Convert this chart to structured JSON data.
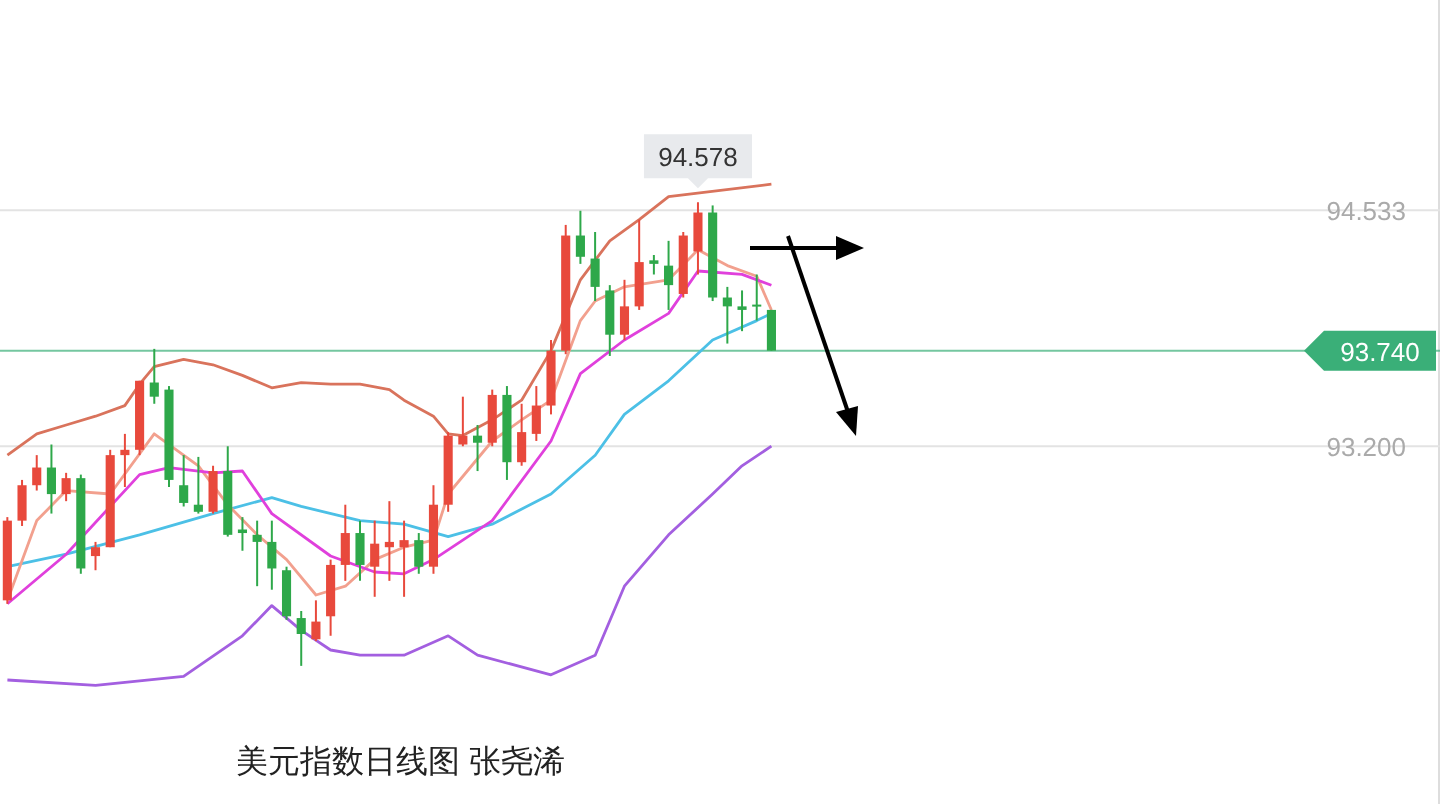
{
  "chart_data": {
    "type": "candlestick",
    "title": "美元指数日线图 张尧浠",
    "categories": [
      null,
      null,
      null,
      null,
      null,
      null,
      null,
      null,
      null,
      null,
      null,
      null,
      null,
      null,
      null,
      null,
      null,
      null,
      null,
      null,
      null,
      null,
      null,
      null,
      null,
      null,
      null,
      null,
      null,
      null,
      null,
      null,
      null,
      null,
      null,
      null,
      null,
      null,
      null,
      null,
      null,
      null,
      null,
      null,
      null,
      null,
      null,
      null,
      null,
      null,
      null,
      null,
      null,
      null,
      null,
      null,
      null,
      null,
      null,
      null,
      null,
      null,
      null,
      null,
      null,
      null,
      null,
      null,
      null,
      null,
      null,
      null,
      null,
      null,
      null,
      null,
      null,
      null,
      null,
      null,
      null,
      null,
      null,
      null,
      null,
      null,
      null,
      null,
      null,
      null,
      null,
      null,
      null,
      null,
      null,
      null,
      null,
      null
    ],
    "ohlc": [
      [
        92.33,
        92.8,
        92.31,
        92.78
      ],
      [
        92.78,
        93.01,
        92.75,
        92.98
      ],
      [
        92.98,
        93.15,
        92.95,
        93.08
      ],
      [
        93.08,
        93.21,
        92.82,
        92.93
      ],
      [
        92.93,
        93.05,
        92.89,
        93.02
      ],
      [
        93.02,
        93.04,
        92.48,
        92.51
      ],
      [
        92.58,
        92.66,
        92.5,
        92.63
      ],
      [
        92.63,
        93.18,
        92.63,
        93.15
      ],
      [
        93.15,
        93.27,
        92.97,
        93.18
      ],
      [
        93.18,
        93.57,
        93.15,
        93.57
      ],
      [
        93.56,
        93.75,
        93.44,
        93.48
      ],
      [
        93.52,
        93.54,
        92.97,
        93.01
      ],
      [
        92.98,
        93.15,
        92.86,
        92.88
      ],
      [
        92.87,
        93.14,
        92.82,
        92.83
      ],
      [
        92.83,
        93.09,
        92.82,
        93.06
      ],
      [
        93.06,
        93.2,
        92.69,
        92.7
      ],
      [
        92.73,
        92.8,
        92.61,
        92.71
      ],
      [
        92.7,
        92.78,
        92.41,
        92.66
      ],
      [
        92.66,
        92.78,
        92.39,
        92.51
      ],
      [
        92.5,
        92.52,
        92.22,
        92.24
      ],
      [
        92.23,
        92.27,
        91.96,
        92.14
      ],
      [
        92.11,
        92.33,
        92.1,
        92.21
      ],
      [
        92.24,
        92.56,
        92.13,
        92.53
      ],
      [
        92.53,
        92.87,
        92.44,
        92.71
      ],
      [
        92.71,
        92.78,
        92.44,
        92.53
      ],
      [
        92.52,
        92.78,
        92.35,
        92.65
      ],
      [
        92.63,
        92.89,
        92.44,
        92.66
      ],
      [
        92.63,
        92.78,
        92.35,
        92.67
      ],
      [
        92.67,
        92.71,
        92.48,
        92.52
      ],
      [
        92.52,
        92.98,
        92.48,
        92.87
      ],
      [
        92.87,
        93.28,
        92.83,
        93.26
      ],
      [
        93.21,
        93.48,
        93.2,
        93.26
      ],
      [
        93.26,
        93.32,
        93.06,
        93.22
      ],
      [
        93.22,
        93.52,
        93.2,
        93.49
      ],
      [
        93.49,
        93.54,
        93.01,
        93.11
      ],
      [
        93.11,
        93.44,
        93.09,
        93.28
      ],
      [
        93.27,
        93.54,
        93.23,
        93.43
      ],
      [
        93.43,
        93.8,
        93.38,
        93.74
      ],
      [
        93.74,
        94.45,
        93.72,
        94.39
      ],
      [
        94.39,
        94.53,
        94.23,
        94.27
      ],
      [
        94.26,
        94.41,
        94.02,
        94.1
      ],
      [
        94.08,
        94.11,
        93.71,
        93.83
      ],
      [
        93.83,
        94.14,
        93.8,
        93.99
      ],
      [
        93.99,
        94.48,
        93.97,
        94.24
      ],
      [
        94.25,
        94.28,
        94.17,
        94.23
      ],
      [
        94.22,
        94.36,
        93.97,
        94.11
      ],
      [
        94.06,
        94.41,
        94.04,
        94.39
      ],
      [
        94.3,
        94.578,
        94.17,
        94.52
      ],
      [
        94.52,
        94.56,
        94.02,
        94.04
      ],
      [
        94.04,
        94.1,
        93.78,
        93.99
      ],
      [
        93.99,
        94.08,
        93.85,
        93.97
      ],
      [
        94.0,
        94.17,
        93.91,
        93.99
      ],
      [
        93.97,
        93.97,
        93.74,
        93.74
      ],
      null,
      null,
      null,
      null,
      null,
      null,
      null,
      null,
      null,
      null,
      null,
      null,
      null,
      null,
      null,
      null,
      null,
      null,
      null,
      null,
      null,
      null,
      null,
      null,
      null,
      null,
      null,
      null,
      null,
      null,
      null,
      null,
      null,
      null,
      null,
      null,
      null,
      null,
      null,
      null,
      null,
      null,
      null,
      null,
      null
    ],
    "colors": [
      "#e8493c",
      "#e8493c",
      "#e8493c",
      "#2ea84a",
      "#e8493c",
      "#2ea84a",
      "#e8493c",
      "#e8493c",
      "#e8493c",
      "#e8493c",
      "#2ea84a",
      "#2ea84a",
      "#2ea84a",
      "#2ea84a",
      "#e8493c",
      "#2ea84a",
      "#2ea84a",
      "#2ea84a",
      "#2ea84a",
      "#2ea84a",
      "#2ea84a",
      "#e8493c",
      "#e8493c",
      "#e8493c",
      "#2ea84a",
      "#e8493c",
      "#e8493c",
      "#e8493c",
      "#2ea84a",
      "#e8493c",
      "#e8493c",
      "#e8493c",
      "#2ea84a",
      "#e8493c",
      "#2ea84a",
      "#e8493c",
      "#e8493c",
      "#e8493c",
      "#e8493c",
      "#2ea84a",
      "#2ea84a",
      "#2ea84a",
      "#e8493c",
      "#e8493c",
      "#2ea84a",
      "#2ea84a",
      "#e8493c",
      "#e8493c",
      "#2ea84a",
      "#2ea84a",
      "#2ea84a",
      "#2ea84a",
      "#2ea84a",
      null,
      null,
      null,
      null,
      null,
      null,
      null,
      null,
      null,
      null,
      null,
      null,
      null,
      null,
      null,
      null,
      null,
      null,
      null,
      null,
      null,
      null,
      null,
      null,
      null,
      null,
      null,
      null,
      null,
      null,
      null,
      null,
      null,
      null,
      null,
      null,
      null,
      null,
      null,
      null,
      null,
      null,
      null,
      null,
      null
    ],
    "series": [
      {
        "type": "line",
        "color": "#d9735c",
        "values": [
          93.15,
          null,
          93.27,
          null,
          93.32,
          null,
          93.37,
          null,
          93.43,
          93.55,
          93.65,
          null,
          93.69,
          null,
          93.66,
          null,
          93.6,
          null,
          93.53,
          null,
          93.56,
          null,
          93.55,
          null,
          93.55,
          null,
          93.52,
          93.46,
          null,
          93.37,
          93.27,
          93.26,
          null,
          93.35,
          null,
          93.46,
          null,
          93.74,
          null,
          94.14,
          null,
          94.36,
          null,
          94.48,
          null,
          94.61,
          null,
          null,
          null,
          null,
          null,
          null,
          94.68,
          null,
          null,
          null,
          null,
          null,
          null,
          null,
          null,
          null,
          null,
          null,
          null,
          null,
          null,
          null,
          null,
          null,
          null,
          null,
          null,
          null,
          null,
          null,
          null,
          null,
          null,
          null,
          null,
          null,
          null,
          null,
          null,
          null,
          null,
          null,
          null,
          null,
          null,
          null,
          null,
          null,
          null,
          null,
          null,
          null
        ]
      },
      {
        "type": "line",
        "color": "#4cc0e6",
        "values": [
          92.52,
          null,
          null,
          null,
          92.59,
          null,
          null,
          null,
          null,
          92.7,
          null,
          null,
          null,
          null,
          92.82,
          null,
          null,
          null,
          92.91,
          null,
          92.86,
          null,
          null,
          null,
          92.78,
          null,
          null,
          92.76,
          null,
          null,
          92.69,
          null,
          null,
          92.76,
          null,
          null,
          null,
          92.93,
          null,
          null,
          93.15,
          null,
          93.38,
          null,
          null,
          93.57,
          null,
          null,
          93.8,
          null,
          null,
          93.91,
          93.95,
          null,
          null,
          null,
          null,
          null,
          null,
          null,
          null,
          null,
          null,
          null,
          null,
          null,
          null,
          null,
          null,
          null,
          null,
          null,
          null,
          null,
          null,
          null,
          null,
          null,
          null,
          null,
          null,
          null,
          null,
          null,
          null,
          null,
          null,
          null,
          null,
          null,
          null,
          null,
          null,
          null,
          null,
          null,
          null,
          null
        ]
      },
      {
        "type": "line",
        "color": "#a35fe0",
        "values": [
          91.88,
          null,
          null,
          null,
          null,
          null,
          91.85,
          null,
          null,
          null,
          null,
          null,
          91.9,
          null,
          null,
          null,
          92.13,
          null,
          92.3,
          null,
          92.16,
          null,
          92.05,
          null,
          92.02,
          null,
          null,
          92.02,
          null,
          null,
          92.13,
          null,
          92.02,
          null,
          null,
          null,
          null,
          91.91,
          null,
          null,
          92.02,
          null,
          92.41,
          null,
          null,
          92.7,
          null,
          null,
          92.93,
          null,
          93.09,
          null,
          93.2,
          null,
          null,
          null,
          null,
          null,
          null,
          null,
          null,
          null,
          null,
          null,
          null,
          null,
          null,
          null,
          null,
          null,
          null,
          null,
          null,
          null,
          null,
          null,
          null,
          null,
          null,
          null,
          null,
          null,
          null,
          null,
          null,
          null,
          null,
          null,
          null,
          null,
          null,
          null,
          null,
          null,
          null,
          null,
          null,
          null
        ]
      },
      {
        "type": "line",
        "color": "#f2a08e",
        "values": [
          92.33,
          null,
          92.78,
          null,
          92.95,
          null,
          null,
          92.93,
          null,
          null,
          93.27,
          null,
          null,
          93.09,
          null,
          92.87,
          null,
          92.7,
          null,
          92.56,
          null,
          92.36,
          null,
          92.41,
          null,
          92.56,
          null,
          92.63,
          null,
          92.67,
          92.93,
          null,
          null,
          93.23,
          null,
          93.35,
          null,
          93.46,
          null,
          93.91,
          94.02,
          null,
          94.1,
          null,
          null,
          94.14,
          null,
          94.31,
          null,
          94.22,
          null,
          94.16,
          93.97,
          null,
          null,
          null,
          null,
          null,
          null,
          null,
          null,
          null,
          null,
          null,
          null,
          null,
          null,
          null,
          null,
          null,
          null,
          null,
          null,
          null,
          null,
          null,
          null,
          null,
          null,
          null,
          null,
          null,
          null,
          null,
          null,
          null,
          null,
          null,
          null,
          null,
          null,
          null,
          null,
          null,
          null,
          null,
          null,
          null
        ]
      },
      {
        "type": "line",
        "color": "#e040dc",
        "values": [
          92.31,
          null,
          null,
          null,
          92.59,
          null,
          null,
          null,
          null,
          93.04,
          null,
          93.08,
          null,
          null,
          93.05,
          null,
          93.06,
          null,
          92.82,
          null,
          null,
          null,
          92.58,
          null,
          null,
          92.49,
          null,
          92.48,
          null,
          92.56,
          null,
          null,
          null,
          92.78,
          null,
          null,
          null,
          93.23,
          null,
          93.61,
          null,
          null,
          93.8,
          null,
          null,
          93.95,
          null,
          94.19,
          null,
          null,
          94.17,
          null,
          94.11,
          null,
          null,
          null,
          null,
          null,
          null,
          null,
          null,
          null,
          null,
          null,
          null,
          null,
          null,
          null,
          null,
          null,
          null,
          null,
          null,
          null,
          null,
          null,
          null,
          null,
          null,
          null,
          null,
          null,
          null,
          null,
          null,
          null,
          null,
          null,
          null,
          null,
          null,
          null,
          null,
          null,
          null,
          null,
          null,
          null
        ]
      }
    ],
    "ylim": [
      91.18,
      95.72
    ],
    "yticks": [
      94.533,
      {
        "value": 93.2,
        "label": "93.200"
      }
    ],
    "grid": "y",
    "ref_lines": [
      {
        "axis": "y",
        "value": 93.74,
        "label": "93.740",
        "color": "#3aaf78"
      }
    ],
    "annotations": [
      {
        "text": "94.578",
        "y": 94.578
      }
    ]
  }
}
